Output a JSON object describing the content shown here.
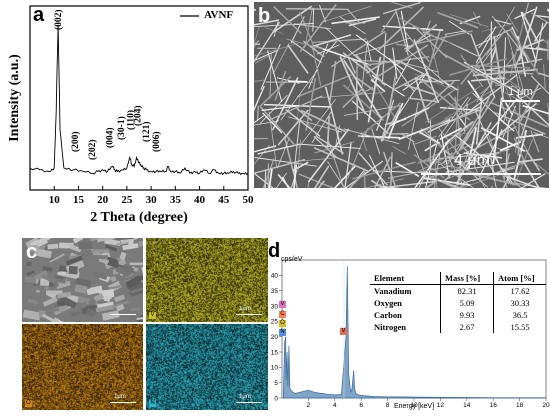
{
  "panel_a": {
    "letter": "a",
    "legend": "AVNF",
    "xlabel": "2 Theta (degree)",
    "ylabel": "Intensity (a.u.)",
    "xticks": [
      "10",
      "15",
      "20",
      "25",
      "30",
      "35",
      "40",
      "45",
      "50"
    ],
    "peak_labels": [
      "(002)",
      "(200)",
      "(202)",
      "(004)",
      "(30-1)",
      "(110)",
      "(204)",
      "(121)",
      "(006)"
    ]
  },
  "panel_b": {
    "letter": "b",
    "scale_small": "1 μm",
    "scale_large": "4 μm"
  },
  "panel_c": {
    "letter": "c",
    "scale": "1μm",
    "map_tags": [
      "V",
      "O",
      "N"
    ],
    "colors": {
      "vanadium": "#c8c029",
      "oxygen": "#d08a14",
      "nitrogen": "#2fb4c8"
    }
  },
  "panel_d": {
    "letter": "d",
    "ylabel": "cps/eV",
    "xlabel": "Energy [keV]",
    "xticks": [
      "2",
      "4",
      "6",
      "8",
      "10",
      "12",
      "14",
      "16",
      "18",
      "20"
    ],
    "yticks": [
      "0",
      "5",
      "10",
      "15",
      "20",
      "25",
      "30",
      "35",
      "40"
    ],
    "peak_tags": [
      "V",
      "C",
      "O",
      "N",
      "V"
    ],
    "table": {
      "headers": [
        "Element",
        "Mass [%]",
        "Atom [%]"
      ],
      "rows": [
        [
          "Vanadium",
          "82.31",
          "17.62"
        ],
        [
          "Oxygen",
          "5.09",
          "30.33"
        ],
        [
          "Carbon",
          "9.93",
          "36.5"
        ],
        [
          "Nitrogen",
          "2.67",
          "15.55"
        ]
      ]
    }
  },
  "chart_data": [
    {
      "type": "line",
      "title": "",
      "xlabel": "2 Theta (degree)",
      "ylabel": "Intensity (a.u.)",
      "xlim": [
        5,
        50
      ],
      "series": [
        {
          "name": "AVNF",
          "x": [
            5,
            7,
            9,
            10,
            10.4,
            10.8,
            11.2,
            12,
            14,
            16,
            18,
            19,
            20,
            21,
            22,
            22.5,
            23,
            24,
            25,
            25.6,
            26,
            26.5,
            27,
            27.5,
            28,
            28.5,
            29,
            30,
            31,
            32,
            33,
            33.5,
            34,
            35,
            36,
            37,
            38,
            39,
            40,
            41,
            42,
            43,
            44,
            45,
            46,
            47,
            48,
            49,
            50
          ],
          "y": [
            8,
            7,
            6,
            8,
            40,
            90,
            30,
            8,
            7,
            6,
            5,
            6,
            7,
            6,
            9,
            7,
            6,
            7,
            8,
            14,
            10,
            9,
            14,
            11,
            9,
            8,
            7,
            6,
            6,
            6,
            6,
            9,
            6,
            6,
            5,
            8,
            5,
            6,
            5,
            7,
            5,
            7,
            5,
            5,
            5,
            6,
            5,
            5,
            5
          ]
        }
      ]
    },
    {
      "type": "area",
      "title": "",
      "xlabel": "Energy [keV]",
      "ylabel": "cps/eV",
      "xlim": [
        0,
        20
      ],
      "ylim": [
        0,
        45
      ],
      "series": [
        {
          "name": "",
          "x": [
            0.1,
            0.2,
            0.28,
            0.3,
            0.39,
            0.45,
            0.52,
            0.6,
            0.8,
            1,
            1.5,
            2,
            2.5,
            3,
            3.5,
            4,
            4.5,
            4.85,
            4.95,
            5.05,
            5.2,
            5.3,
            5.43,
            5.5,
            5.6,
            5.8,
            6,
            7,
            8,
            10,
            12,
            14,
            16,
            18,
            20
          ],
          "y": [
            0,
            18,
            20,
            6,
            15,
            4,
            17,
            3,
            2,
            1.5,
            2,
            2.5,
            1.8,
            1.5,
            1.2,
            1,
            1.2,
            20,
            43,
            8,
            2,
            3,
            9,
            3,
            1.5,
            1,
            0.8,
            0.5,
            0.4,
            0.3,
            0.2,
            0.15,
            0.1,
            0.1,
            0.1
          ]
        }
      ]
    }
  ]
}
